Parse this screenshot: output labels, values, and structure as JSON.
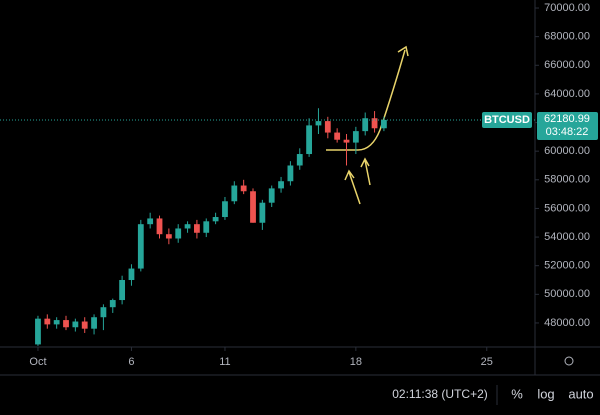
{
  "chart_data": {
    "type": "candlestick",
    "symbol": "BTCUSD",
    "countdown": "03:48:22",
    "x": [
      1,
      1.5,
      2,
      2.5,
      3,
      3.5,
      4,
      4.5,
      5,
      5.5,
      6,
      6.5,
      7,
      7.5,
      8,
      8.5,
      9,
      9.5,
      10,
      10.5,
      11,
      11.5,
      12,
      12.5,
      13,
      13.5,
      14,
      14.5,
      15,
      15.5,
      16,
      16.5,
      17,
      17.5,
      18,
      18.5,
      19,
      19.5
    ],
    "open": [
      46500,
      48300,
      47900,
      48200,
      47700,
      48100,
      47600,
      48400,
      49100,
      49600,
      51000,
      51800,
      54900,
      55300,
      54200,
      53900,
      54600,
      54900,
      54300,
      55100,
      55400,
      56500,
      57600,
      57200,
      55000,
      56400,
      57400,
      57900,
      59000,
      59800,
      61800,
      62100,
      61300,
      60800,
      60600,
      61400,
      62300,
      61600
    ],
    "high": [
      48500,
      48600,
      48400,
      48500,
      48300,
      48400,
      48600,
      49300,
      49700,
      51300,
      52100,
      55200,
      55700,
      55500,
      54600,
      54900,
      55100,
      55200,
      55300,
      55700,
      56800,
      57900,
      58000,
      57400,
      56600,
      57600,
      58200,
      59300,
      60200,
      62300,
      63000,
      62400,
      61600,
      61200,
      61700,
      62700,
      62800,
      62400
    ],
    "low": [
      46400,
      47600,
      47600,
      47500,
      47400,
      47300,
      47200,
      47500,
      48700,
      49300,
      50600,
      51600,
      54600,
      53900,
      53500,
      53600,
      54300,
      53900,
      54000,
      54900,
      55200,
      56300,
      57000,
      55000,
      54500,
      56100,
      57100,
      57600,
      58700,
      59600,
      61200,
      60900,
      60600,
      59000,
      59800,
      61100,
      61300,
      61400
    ],
    "close": [
      48300,
      47900,
      48200,
      47700,
      48100,
      47600,
      48400,
      49100,
      49600,
      51000,
      51800,
      54900,
      55300,
      54200,
      53900,
      54600,
      54900,
      54300,
      55100,
      55400,
      56500,
      57600,
      57200,
      55000,
      56400,
      57400,
      57900,
      59000,
      59800,
      61800,
      62100,
      61300,
      60800,
      60600,
      61400,
      62300,
      61600,
      62180.99
    ],
    "up_color": "#26a69a",
    "down_color": "#ef5350",
    "xlim": [
      -1.03,
      27.58
    ],
    "xticks": [
      {
        "value": 1,
        "label": "Oct"
      },
      6,
      11,
      18,
      25
    ],
    "ylim": [
      46460,
      70560
    ],
    "yticks": [
      {
        "value": 48000,
        "label": "48000.00"
      },
      {
        "value": 50000,
        "label": "50000.00"
      },
      {
        "value": 52000,
        "label": "52000.00"
      },
      {
        "value": 54000,
        "label": "54000.00"
      },
      {
        "value": 56000,
        "label": "56000.00"
      },
      {
        "value": 58000,
        "label": "58000.00"
      },
      {
        "value": 60000,
        "label": "60000.00"
      },
      {
        "value": 62000,
        "label": "62000.00"
      },
      {
        "value": 64000,
        "label": "64000.00"
      },
      {
        "value": 66000,
        "label": "66000.00"
      },
      {
        "value": 68000,
        "label": "68000.00"
      },
      {
        "value": 70000,
        "label": "70000.00"
      }
    ]
  },
  "toolbar": {
    "clock": "02:11:38 (UTC+2)",
    "buttons": [
      "%",
      "log",
      "auto"
    ]
  }
}
